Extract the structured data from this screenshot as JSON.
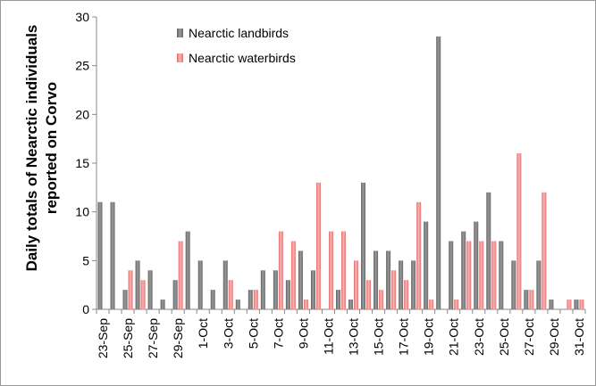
{
  "chart_data": {
    "type": "bar",
    "ylabel_lines": [
      "Daily totals of Nearctic individuals",
      "reported on Corvo"
    ],
    "xlabel": "",
    "ylim": [
      0,
      30
    ],
    "yticks": [
      0,
      5,
      10,
      15,
      20,
      25,
      30
    ],
    "legend_position": "top-center",
    "grid": false,
    "categories": [
      "23-Sep",
      "24-Sep",
      "25-Sep",
      "26-Sep",
      "27-Sep",
      "28-Sep",
      "29-Sep",
      "30-Sep",
      "1-Oct",
      "2-Oct",
      "3-Oct",
      "4-Oct",
      "5-Oct",
      "6-Oct",
      "7-Oct",
      "8-Oct",
      "9-Oct",
      "10-Oct",
      "11-Oct",
      "12-Oct",
      "13-Oct",
      "14-Oct",
      "15-Oct",
      "16-Oct",
      "17-Oct",
      "18-Oct",
      "19-Oct",
      "20-Oct",
      "21-Oct",
      "22-Oct",
      "23-Oct",
      "24-Oct",
      "25-Oct",
      "26-Oct",
      "27-Oct",
      "28-Oct",
      "29-Oct",
      "30-Oct",
      "31-Oct"
    ],
    "shown_tick_labels": [
      "23-Sep",
      "25-Sep",
      "27-Sep",
      "29-Sep",
      "1-Oct",
      "3-Oct",
      "5-Oct",
      "7-Oct",
      "9-Oct",
      "11-Oct",
      "13-Oct",
      "15-Oct",
      "17-Oct",
      "19-Oct",
      "21-Oct",
      "23-Oct",
      "25-Oct",
      "27-Oct",
      "29-Oct",
      "31-Oct"
    ],
    "series": [
      {
        "name": "Nearctic landbirds",
        "color": "#7f7f7f",
        "values": [
          11,
          11,
          2,
          5,
          4,
          1,
          3,
          8,
          5,
          2,
          5,
          1,
          2,
          4,
          4,
          3,
          6,
          4,
          0,
          2,
          1,
          13,
          6,
          6,
          5,
          5,
          9,
          28,
          7,
          8,
          9,
          12,
          7,
          5,
          2,
          5,
          1,
          0,
          1
        ]
      },
      {
        "name": "Nearctic waterbirds",
        "color": "#f08080",
        "values": [
          0,
          0,
          4,
          3,
          0,
          0,
          7,
          0,
          0,
          0,
          3,
          0,
          2,
          0,
          8,
          7,
          1,
          13,
          8,
          8,
          5,
          3,
          2,
          4,
          3,
          11,
          1,
          0,
          1,
          7,
          7,
          7,
          0,
          16,
          2,
          12,
          0,
          1,
          1
        ]
      }
    ]
  }
}
